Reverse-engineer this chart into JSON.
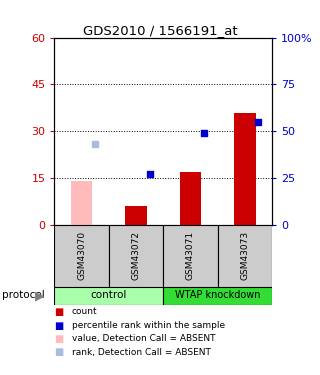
{
  "title": "GDS2010 / 1566191_at",
  "samples": [
    "GSM43070",
    "GSM43072",
    "GSM43071",
    "GSM43073"
  ],
  "group_labels": [
    "control",
    "WTAP knockdown"
  ],
  "ylim_left": [
    0,
    60
  ],
  "ylim_right": [
    0,
    100
  ],
  "yticks_left": [
    0,
    15,
    30,
    45,
    60
  ],
  "yticks_right": [
    0,
    25,
    50,
    75,
    100
  ],
  "ytick_labels_left": [
    "0",
    "15",
    "30",
    "45",
    "60"
  ],
  "ytick_labels_right": [
    "0",
    "25",
    "50",
    "75",
    "100%"
  ],
  "red_bars_present": [
    null,
    6,
    17,
    36
  ],
  "red_bars_absent": [
    14,
    null,
    null,
    null
  ],
  "blue_pts_present": [
    null,
    27,
    49,
    55
  ],
  "blue_pts_absent": [
    null,
    null,
    null,
    null
  ],
  "blue_absent_pts": [
    43,
    null,
    null,
    null
  ],
  "red_color": "#cc0000",
  "red_absent_color": "#ffbbbb",
  "blue_color": "#0000cc",
  "blue_absent_color": "#aabbdd",
  "bg_plot": "#ffffff",
  "bg_xticklabel": "#cccccc",
  "bg_group_control": "#aaffaa",
  "bg_group_knockdown": "#33dd33",
  "left_tick_color": "#cc0000",
  "right_tick_color": "#0000cc",
  "legend_items": [
    "count",
    "percentile rank within the sample",
    "value, Detection Call = ABSENT",
    "rank, Detection Call = ABSENT"
  ],
  "legend_colors": [
    "#cc0000",
    "#0000cc",
    "#ffbbbb",
    "#aabbdd"
  ]
}
